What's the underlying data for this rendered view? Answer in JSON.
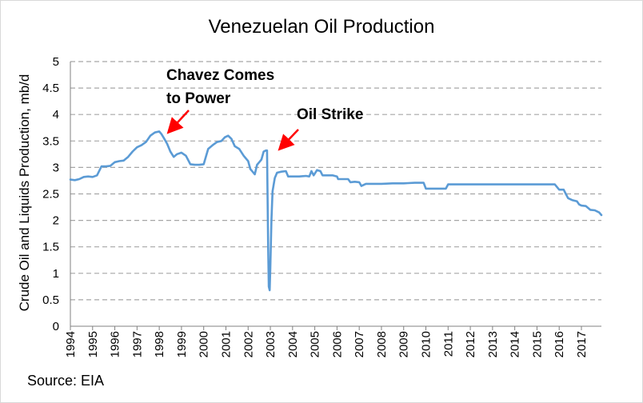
{
  "chart_data": {
    "type": "line",
    "title": "Venezuelan Oil Production",
    "ylabel": "Crude Oil and Liquids Production, mb/d",
    "xlabel": "",
    "source": "Source: EIA",
    "ylim": [
      0,
      5
    ],
    "xlim": [
      1994,
      2017.9
    ],
    "grid": "horizontal dashed",
    "y_ticks": [
      "0",
      "0.5",
      "1",
      "1.5",
      "2",
      "2.5",
      "3",
      "3.5",
      "4",
      "4.5",
      "5"
    ],
    "x_ticks": [
      "1994",
      "1995",
      "1996",
      "1997",
      "1998",
      "1999",
      "2000",
      "2001",
      "2002",
      "2003",
      "2004",
      "2005",
      "2006",
      "2007",
      "2008",
      "2009",
      "2010",
      "2011",
      "2012",
      "2013",
      "2014",
      "2015",
      "2016",
      "2017"
    ],
    "line_color": "#5b9bd5",
    "annotations": [
      {
        "lines": [
          "Chavez Comes",
          "to Power"
        ],
        "x": 1998.1,
        "y": 3.63
      },
      {
        "lines": [
          "Oil Strike"
        ],
        "x": 2002.8,
        "y": 3.3
      }
    ],
    "series": [
      {
        "x": [
          1994.0,
          1994.2,
          1994.4,
          1994.6,
          1994.8,
          1995.0,
          1995.2,
          1995.4,
          1995.6,
          1995.8,
          1996.0,
          1996.2,
          1996.4,
          1996.6,
          1996.8,
          1997.0,
          1997.2,
          1997.4,
          1997.6,
          1997.8,
          1998.0,
          1998.1,
          1998.2,
          1998.35,
          1998.5,
          1998.65,
          1998.8,
          1999.0,
          1999.2,
          1999.4,
          1999.6,
          1999.8,
          2000.0,
          2000.2,
          2000.4,
          2000.6,
          2000.8,
          2000.95,
          2001.1,
          2001.25,
          2001.4,
          2001.6,
          2001.8,
          2002.0,
          2002.1,
          2002.2,
          2002.3,
          2002.4,
          2002.5,
          2002.6,
          2002.7,
          2002.8,
          2002.85,
          2002.9,
          2002.93,
          2002.97,
          2003.0,
          2003.05,
          2003.1,
          2003.2,
          2003.3,
          2003.5,
          2003.7,
          2003.8,
          2004.0,
          2004.3,
          2004.6,
          2004.75,
          2004.85,
          2004.95,
          2005.1,
          2005.25,
          2005.35,
          2005.5,
          2005.8,
          2006.0,
          2006.05,
          2006.3,
          2006.5,
          2006.6,
          2006.8,
          2007.0,
          2007.1,
          2007.3,
          2007.6,
          2008.0,
          2008.5,
          2009.0,
          2009.5,
          2009.9,
          2010.0,
          2010.3,
          2010.6,
          2010.9,
          2011.0,
          2011.5,
          2012.0,
          2013.0,
          2014.0,
          2015.0,
          2015.5,
          2015.8,
          2016.0,
          2016.2,
          2016.3,
          2016.4,
          2016.6,
          2016.8,
          2016.9,
          2017.0,
          2017.2,
          2017.4,
          2017.6,
          2017.8,
          2017.9
        ],
        "values": [
          2.77,
          2.76,
          2.78,
          2.82,
          2.83,
          2.82,
          2.85,
          3.02,
          3.02,
          3.03,
          3.1,
          3.12,
          3.13,
          3.2,
          3.3,
          3.38,
          3.42,
          3.48,
          3.6,
          3.66,
          3.68,
          3.63,
          3.56,
          3.45,
          3.3,
          3.2,
          3.25,
          3.28,
          3.22,
          3.06,
          3.05,
          3.05,
          3.06,
          3.35,
          3.42,
          3.48,
          3.5,
          3.57,
          3.6,
          3.54,
          3.4,
          3.35,
          3.22,
          3.12,
          2.97,
          2.92,
          2.87,
          3.05,
          3.1,
          3.15,
          3.3,
          3.32,
          3.32,
          1.5,
          0.75,
          0.68,
          1.1,
          2.0,
          2.55,
          2.8,
          2.9,
          2.92,
          2.93,
          2.83,
          2.83,
          2.83,
          2.84,
          2.83,
          2.93,
          2.85,
          2.95,
          2.93,
          2.85,
          2.85,
          2.85,
          2.83,
          2.78,
          2.78,
          2.78,
          2.72,
          2.73,
          2.72,
          2.65,
          2.69,
          2.69,
          2.69,
          2.7,
          2.7,
          2.71,
          2.71,
          2.6,
          2.6,
          2.6,
          2.6,
          2.68,
          2.68,
          2.68,
          2.68,
          2.68,
          2.68,
          2.68,
          2.68,
          2.58,
          2.58,
          2.5,
          2.42,
          2.38,
          2.36,
          2.3,
          2.28,
          2.27,
          2.2,
          2.19,
          2.15,
          2.1
        ]
      }
    ]
  }
}
